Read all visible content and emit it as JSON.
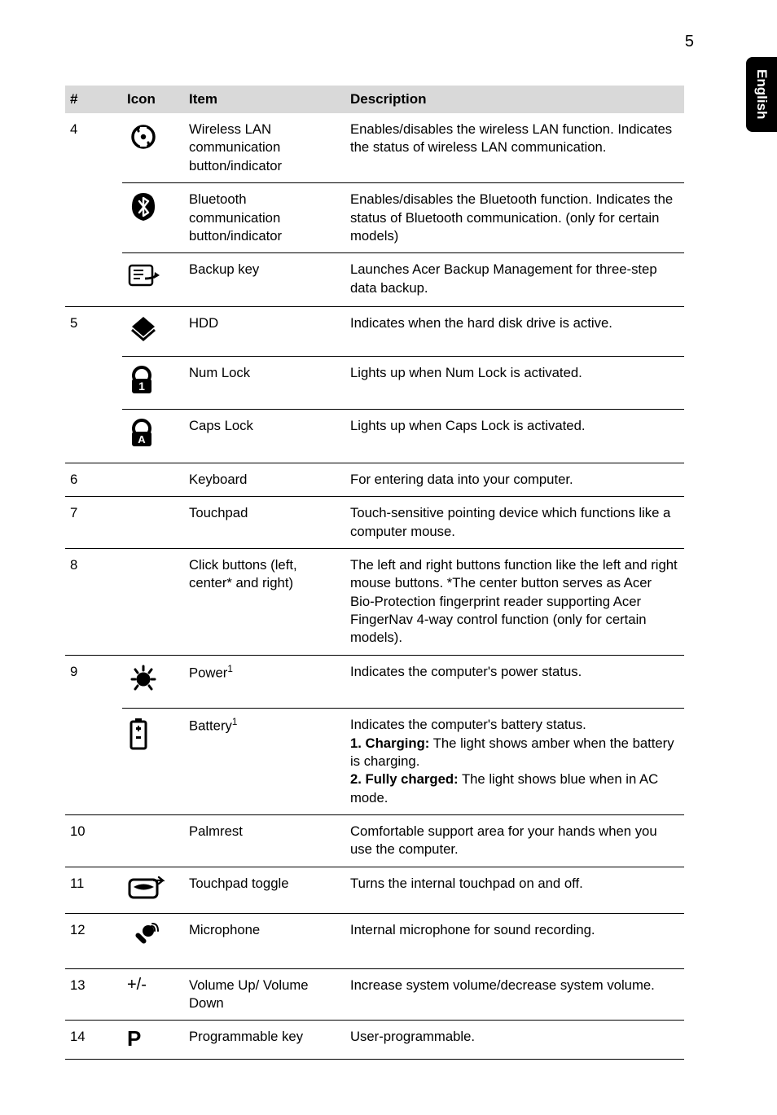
{
  "page_number": "5",
  "side_tab": "English",
  "columns": {
    "num": "#",
    "icon": "Icon",
    "item": "Item",
    "desc": "Description"
  },
  "rows": [
    {
      "num": "4",
      "icon": "wifi",
      "item": "Wireless LAN communication button/indicator",
      "desc": "Enables/disables the wireless LAN function. Indicates the status of wireless LAN communication."
    },
    {
      "num": "",
      "icon": "bluetooth",
      "item": "Bluetooth communication button/indicator",
      "desc": "Enables/disables the Bluetooth function. Indicates the status of Bluetooth communication. (only for certain models)"
    },
    {
      "num": "",
      "icon": "backup",
      "item": "Backup key",
      "desc": "Launches Acer Backup Management for three-step data backup."
    },
    {
      "num": "5",
      "icon": "hdd",
      "item": "HDD",
      "desc": "Indicates when the hard disk drive is active."
    },
    {
      "num": "",
      "icon": "numlock",
      "item": "Num Lock",
      "desc": "Lights up when Num Lock is activated."
    },
    {
      "num": "",
      "icon": "capslock",
      "item": "Caps Lock",
      "desc": "Lights up when Caps Lock is activated."
    },
    {
      "num": "6",
      "icon": "",
      "item": "Keyboard",
      "desc": "For entering data into your computer."
    },
    {
      "num": "7",
      "icon": "",
      "item": "Touchpad",
      "desc": "Touch-sensitive pointing device which functions like a computer mouse."
    },
    {
      "num": "8",
      "icon": "",
      "item": "Click buttons (left, center* and right)",
      "desc": "The left and right buttons function like the left and right mouse buttons. *The center button serves as Acer Bio-Protection fingerprint reader supporting Acer FingerNav 4-way control function (only for certain models)."
    },
    {
      "num": "9",
      "icon": "power",
      "item_html": "Power<sup>1</sup>",
      "desc": "Indicates the computer's power status."
    },
    {
      "num": "",
      "icon": "battery",
      "item_html": "Battery<sup>1</sup>",
      "desc_html": "Indicates the computer's battery status.<br><span class='bold-inline'>1. Charging:</span> The light shows amber when the battery is charging.<br><span class='bold-inline'>2. Fully charged:</span> The light shows blue when in AC mode."
    },
    {
      "num": "10",
      "icon": "",
      "item": "Palmrest",
      "desc": "Comfortable support area for your hands when you use the computer."
    },
    {
      "num": "11",
      "icon": "touchpadtoggle",
      "item": "Touchpad toggle",
      "desc": "Turns the internal touchpad on and off."
    },
    {
      "num": "12",
      "icon": "microphone",
      "item": "Microphone",
      "desc": "Internal microphone for sound recording."
    },
    {
      "num": "13",
      "icon": "plusminus",
      "item": "Volume Up/ Volume Down",
      "desc": "Increase system volume/decrease system volume."
    },
    {
      "num": "14",
      "icon": "pletter",
      "item": "Programmable key",
      "desc": "User-programmable."
    }
  ],
  "icons_label": {
    "wifi": "wireless-lan-icon",
    "bluetooth": "bluetooth-icon",
    "backup": "backup-key-icon",
    "hdd": "hdd-icon",
    "numlock": "num-lock-icon",
    "capslock": "caps-lock-icon",
    "power": "power-icon",
    "battery": "battery-icon",
    "touchpadtoggle": "touchpad-toggle-icon",
    "microphone": "microphone-icon",
    "plusminus": "plus-minus-label",
    "pletter": "p-key-label"
  },
  "groups": [
    {
      "num": "4",
      "span": 3
    },
    {
      "num": "5",
      "span": 3
    }
  ]
}
